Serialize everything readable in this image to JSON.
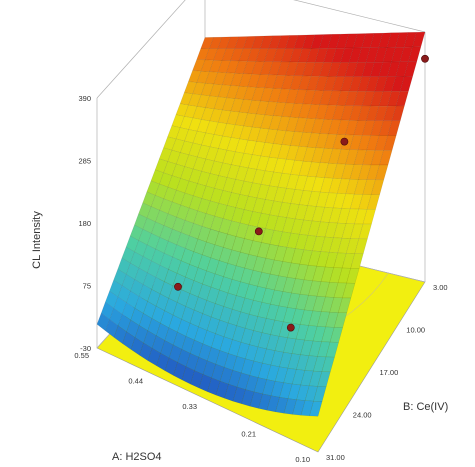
{
  "chart_data": {
    "type": "surface3d",
    "zlabel": "CL Intensity",
    "xlabel": "A: H2SO4",
    "ylabel": "B: Ce(IV)",
    "z_ticks": [
      "-30",
      "75",
      "180",
      "285",
      "390"
    ],
    "z_range": [
      -30,
      390
    ],
    "x_ticks": [
      "0.55",
      "0.44",
      "0.33",
      "0.21",
      "0.10"
    ],
    "x_range": [
      0.1,
      0.55
    ],
    "y_ticks": [
      "3.00",
      "10.00",
      "17.00",
      "24.00",
      "31.00"
    ],
    "y_range": [
      3.0,
      31.0
    ],
    "surface_corners": [
      {
        "A": 0.55,
        "B": 3.0,
        "z": 290
      },
      {
        "A": 0.55,
        "B": 31.0,
        "z": 10
      },
      {
        "A": 0.1,
        "B": 3.0,
        "z": 390
      },
      {
        "A": 0.1,
        "B": 31.0,
        "z": 30
      }
    ],
    "design_points": [
      {
        "A": 0.33,
        "B": 17.0,
        "z": 130
      },
      {
        "A": 0.44,
        "B": 24.0,
        "z": 60
      },
      {
        "A": 0.21,
        "B": 10.0,
        "z": 250
      },
      {
        "A": 0.1,
        "B": 3.0,
        "z": 345
      },
      {
        "A": 0.21,
        "B": 24.0,
        "z": 70
      }
    ],
    "colormap": [
      "#1f3fb8",
      "#2aa8e0",
      "#4fd0a0",
      "#b8e020",
      "#f0e010",
      "#f07a10",
      "#d61818"
    ],
    "floor_color": "#f2ef10",
    "grid": false,
    "legend": "none"
  }
}
